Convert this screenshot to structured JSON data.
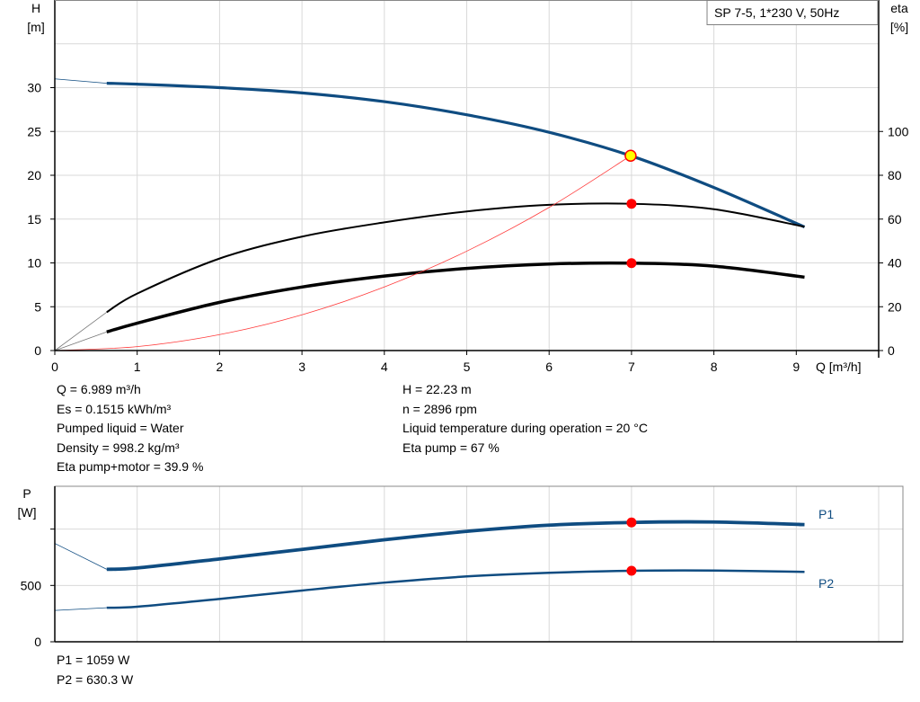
{
  "chart_data": [
    {
      "type": "line",
      "title": "SP 7-5, 1*230 V, 50Hz",
      "xlabel": "Q [m³/h]",
      "ylabel_left": [
        "H",
        "[m]"
      ],
      "ylabel_right": [
        "eta",
        "[%]"
      ],
      "xlim": [
        0,
        10
      ],
      "ylim_left": [
        0,
        40
      ],
      "ylim_right": [
        0,
        160
      ],
      "x_ticks": [
        "0",
        "1",
        "2",
        "3",
        "4",
        "5",
        "6",
        "7",
        "8",
        "9"
      ],
      "y_ticks_left": [
        "0",
        "5",
        "10",
        "15",
        "20",
        "25",
        "30"
      ],
      "y_ticks_right": [
        "0",
        "20",
        "40",
        "60",
        "80",
        "100"
      ],
      "grid": true,
      "series": [
        {
          "key": "H",
          "axis": "left",
          "color": "#0f4c81",
          "x": [
            0.63,
            1,
            2,
            3,
            4,
            5,
            6,
            7,
            8,
            9.1
          ],
          "y": [
            30.5,
            30.4,
            30.0,
            29.4,
            28.4,
            26.9,
            24.9,
            22.2,
            18.6,
            14.1
          ],
          "extrapolated_from": [
            0,
            31
          ]
        },
        {
          "key": "eta_pump",
          "axis": "right",
          "color": "#000000",
          "x": [
            0.63,
            1,
            2,
            3,
            4,
            5,
            6,
            7,
            8,
            9.1
          ],
          "y": [
            17.5,
            26,
            42,
            52,
            58.5,
            63.5,
            66.5,
            67,
            64.5,
            56.5
          ],
          "extrapolated_from": [
            0,
            0
          ]
        },
        {
          "key": "eta_pump_motor",
          "axis": "right",
          "color": "#000000",
          "x": [
            0.63,
            1,
            2,
            3,
            4,
            5,
            6,
            7,
            8,
            9.1
          ],
          "y": [
            8.5,
            12.5,
            22,
            29,
            34,
            37.5,
            39.5,
            39.9,
            38.5,
            33.5
          ],
          "extrapolated_from": [
            0,
            0
          ]
        },
        {
          "key": "system_curve",
          "axis": "left",
          "color": "#ff3b3b",
          "x": [
            0,
            1,
            2,
            3,
            4,
            5,
            6,
            6.989
          ],
          "y": [
            0,
            0.45,
            1.82,
            4.08,
            7.26,
            11.34,
            16.33,
            22.23
          ]
        }
      ],
      "operating_point": {
        "Q": 6.989,
        "H": 22.23,
        "eta_pump": 67,
        "eta_pump_motor": 39.9
      }
    },
    {
      "type": "line",
      "ylabel": [
        "P",
        "[W]"
      ],
      "xlim": [
        0,
        10
      ],
      "ylim": [
        0,
        1380
      ],
      "y_ticks": [
        {
          "value": 0,
          "label": "0"
        },
        {
          "value": 500,
          "label": "500"
        },
        {
          "value": 1000,
          "label": ""
        }
      ],
      "grid": true,
      "series": [
        {
          "name": "P1",
          "color": "#0f4c81",
          "x": [
            0.63,
            1,
            2,
            3,
            4,
            5,
            6,
            7,
            8,
            9.1
          ],
          "y": [
            643,
            655,
            735,
            820,
            905,
            980,
            1035,
            1059,
            1063,
            1040
          ],
          "extrapolated_from": [
            0,
            873
          ]
        },
        {
          "name": "P2",
          "color": "#0f4c81",
          "x": [
            0.63,
            1,
            2,
            3,
            4,
            5,
            6,
            7,
            8,
            9.1
          ],
          "y": [
            302,
            311,
            380,
            455,
            525,
            580,
            612,
            630,
            632,
            620
          ],
          "extrapolated_from": [
            0,
            278
          ]
        }
      ],
      "operating_point": {
        "Q": 6.989,
        "P1": 1059,
        "P2": 630.3
      }
    }
  ],
  "info_left": [
    "Q = 6.989 m³/h",
    "Es = 0.1515 kWh/m³",
    "Pumped liquid = Water",
    "Density = 998.2 kg/m³",
    "Eta pump+motor = 39.9 %"
  ],
  "info_right": [
    "H = 22.23 m",
    "n = 2896 rpm",
    "Liquid temperature during operation = 20 °C",
    "Eta pump = 67 %"
  ],
  "power_info": [
    "P1 = 1059 W",
    "P2 = 630.3 W"
  ],
  "colors": {
    "curve_blue": "#0f4c81",
    "marker_red": "#ff0000",
    "op_point_fill": "#ffff00",
    "grid": "#d9d9d9"
  }
}
